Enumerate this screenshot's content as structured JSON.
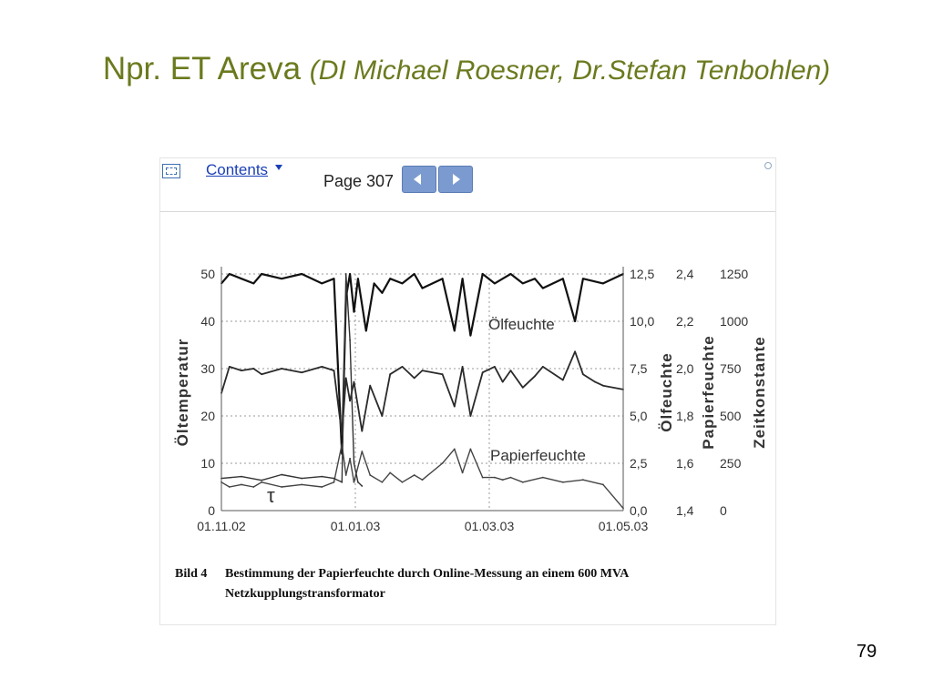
{
  "slide": {
    "title_main": "Npr. ET Areva ",
    "title_sub": "(DI Michael Roesner, Dr.Stefan Tenbohlen)",
    "page_number": "79"
  },
  "viewer": {
    "contents_label": "Contents",
    "page_label": "Page 307",
    "accent_color": "#7b9bd0"
  },
  "caption": {
    "label": "Bild 4",
    "line1": "Bestimmung der Papierfeuchte durch Online-Messung an einem 600 MVA",
    "line2": "Netzkupplungstransformator"
  },
  "chart_data": {
    "type": "line",
    "x_ticks": [
      "01.11.02",
      "01.01.03",
      "01.03.03",
      "01.05.03"
    ],
    "x_range": [
      "01.11.02",
      "01.05.03"
    ],
    "axes": [
      {
        "title": "Öltemperatur",
        "ticks": [
          "0",
          "10",
          "20",
          "30",
          "40",
          "50"
        ],
        "range": [
          0,
          50
        ]
      },
      {
        "title": "Ölfeuchte",
        "ticks": [
          "0,0",
          "2,5",
          "5,0",
          "7,5",
          "10,0",
          "12,5"
        ],
        "range": [
          0,
          12.5
        ]
      },
      {
        "title": "Papierfeuchte",
        "ticks": [
          "1,4",
          "1,6",
          "1,8",
          "2,0",
          "2,2",
          "2,4"
        ],
        "range": [
          1.4,
          2.4
        ]
      },
      {
        "title": "Zeitkonstante",
        "ticks": [
          "0",
          "250",
          "500",
          "750",
          "1000",
          "1250"
        ],
        "range": [
          0,
          1250
        ]
      }
    ],
    "grid": true,
    "annotations": [
      "Ölfeuchte",
      "Papierfeuchte",
      "τ"
    ],
    "series": [
      {
        "name": "Öltemperatur",
        "axis": 0,
        "x": [
          0,
          0.02,
          0.05,
          0.08,
          0.1,
          0.15,
          0.2,
          0.25,
          0.28,
          0.3,
          0.31,
          0.32,
          0.33,
          0.34,
          0.36,
          0.38,
          0.4,
          0.42,
          0.45,
          0.48,
          0.5,
          0.55,
          0.58,
          0.6,
          0.62,
          0.65,
          0.68,
          0.7,
          0.72,
          0.75,
          0.78,
          0.8,
          0.85,
          0.88,
          0.9,
          0.95,
          1.0
        ],
        "y": [
          48,
          50,
          49,
          48,
          50,
          49,
          50,
          48,
          49,
          12,
          45,
          50,
          42,
          49,
          38,
          48,
          46,
          49,
          48,
          50,
          47,
          49,
          38,
          49,
          37,
          50,
          48,
          49,
          50,
          48,
          49,
          47,
          49,
          40,
          49,
          48,
          50
        ]
      },
      {
        "name": "Ölfeuchte",
        "axis": 1,
        "x": [
          0,
          0.02,
          0.05,
          0.08,
          0.1,
          0.15,
          0.2,
          0.25,
          0.28,
          0.3,
          0.31,
          0.32,
          0.33,
          0.35,
          0.37,
          0.4,
          0.42,
          0.45,
          0.48,
          0.5,
          0.55,
          0.58,
          0.6,
          0.62,
          0.65,
          0.68,
          0.7,
          0.72,
          0.75,
          0.78,
          0.8,
          0.85,
          0.88,
          0.9,
          0.93,
          0.95,
          1.0
        ],
        "y": [
          6.2,
          7.6,
          7.4,
          7.5,
          7.2,
          7.5,
          7.3,
          7.6,
          7.4,
          4.0,
          7.0,
          5.8,
          6.8,
          4.2,
          6.6,
          5.0,
          7.2,
          7.6,
          7.0,
          7.4,
          7.2,
          5.5,
          7.6,
          5.0,
          7.3,
          7.6,
          6.8,
          7.4,
          6.5,
          7.1,
          7.6,
          6.9,
          8.4,
          7.2,
          6.8,
          6.6,
          6.4
        ]
      },
      {
        "name": "Papierfeuchte",
        "axis": 2,
        "x": [
          0,
          0.02,
          0.05,
          0.08,
          0.1,
          0.15,
          0.2,
          0.25,
          0.28,
          0.3,
          0.31,
          0.32,
          0.33,
          0.35,
          0.37,
          0.4,
          0.42,
          0.45,
          0.48,
          0.5,
          0.55,
          0.58,
          0.6,
          0.62,
          0.65,
          0.68,
          0.7,
          0.72,
          0.75,
          0.8,
          0.85,
          0.9,
          0.95,
          1.0
        ],
        "y": [
          1.52,
          1.5,
          1.51,
          1.5,
          1.52,
          1.5,
          1.51,
          1.5,
          1.52,
          1.68,
          1.55,
          1.62,
          1.52,
          1.65,
          1.55,
          1.52,
          1.56,
          1.52,
          1.55,
          1.53,
          1.6,
          1.66,
          1.56,
          1.66,
          1.54,
          1.54,
          1.53,
          1.54,
          1.52,
          1.54,
          1.52,
          1.53,
          1.51,
          1.41
        ]
      },
      {
        "name": "Zeitkonstante",
        "axis": 3,
        "x": [
          0,
          0.05,
          0.1,
          0.15,
          0.2,
          0.25,
          0.28,
          0.3,
          0.31,
          0.32,
          0.33,
          0.34,
          0.35
        ],
        "y": [
          170,
          180,
          160,
          190,
          170,
          180,
          170,
          150,
          1250,
          900,
          250,
          150,
          130
        ]
      }
    ]
  }
}
